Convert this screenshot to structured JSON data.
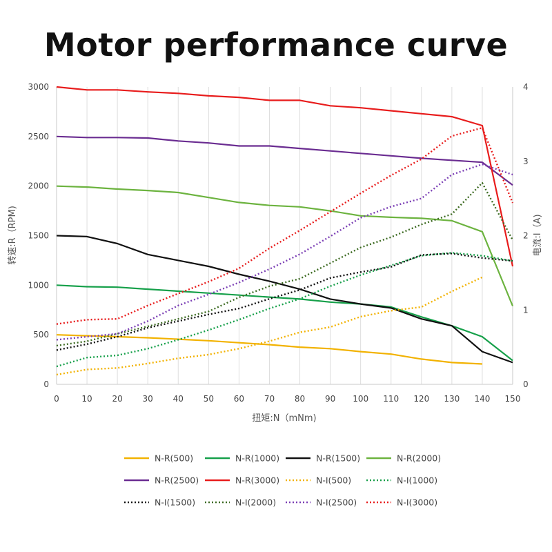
{
  "chart_data": {
    "type": "line",
    "title": "Motor performance curve",
    "xlabel": "扭矩:N（mNm)",
    "ylabel": "转速:R（RPM)",
    "y2label": "电流:I（A)",
    "xlim": [
      0,
      150
    ],
    "ylim": [
      0,
      3000
    ],
    "y2lim": [
      0,
      4
    ],
    "x_ticks": [
      0,
      10,
      20,
      30,
      40,
      50,
      60,
      70,
      80,
      90,
      100,
      110,
      120,
      130,
      140,
      150
    ],
    "y_ticks": [
      0,
      500,
      1000,
      1500,
      2000,
      2500,
      3000
    ],
    "y2_ticks": [
      0,
      1,
      2,
      3,
      4
    ],
    "grid": "vertical",
    "legend_position": "bottom",
    "series": [
      {
        "name": "N-R(500)",
        "axis": "left",
        "style": "solid",
        "color": "#F2B200",
        "x": [
          0,
          10,
          20,
          30,
          40,
          50,
          60,
          70,
          80,
          90,
          100,
          110,
          120,
          130,
          140
        ],
        "values": [
          500,
          490,
          480,
          470,
          455,
          440,
          420,
          400,
          375,
          360,
          330,
          305,
          255,
          220,
          205
        ]
      },
      {
        "name": "N-R(1000)",
        "axis": "left",
        "style": "solid",
        "color": "#16A04A",
        "x": [
          0,
          10,
          20,
          30,
          40,
          50,
          60,
          70,
          80,
          90,
          100,
          110,
          120,
          130,
          140,
          150
        ],
        "values": [
          1000,
          985,
          980,
          960,
          940,
          920,
          900,
          880,
          860,
          830,
          810,
          780,
          680,
          590,
          480,
          240
        ]
      },
      {
        "name": "N-R(1500)",
        "axis": "left",
        "style": "solid",
        "color": "#111111",
        "x": [
          0,
          10,
          20,
          30,
          40,
          50,
          60,
          70,
          80,
          90,
          100,
          110,
          120,
          130,
          140,
          150
        ],
        "values": [
          1500,
          1490,
          1420,
          1310,
          1250,
          1190,
          1110,
          1040,
          960,
          860,
          810,
          770,
          660,
          590,
          330,
          220
        ]
      },
      {
        "name": "N-R(2000)",
        "axis": "left",
        "style": "solid",
        "color": "#6CB33F",
        "x": [
          0,
          10,
          20,
          30,
          40,
          50,
          60,
          70,
          80,
          90,
          100,
          110,
          120,
          130,
          140,
          150
        ],
        "values": [
          2000,
          1990,
          1970,
          1955,
          1935,
          1885,
          1835,
          1805,
          1790,
          1750,
          1700,
          1685,
          1675,
          1650,
          1540,
          790
        ]
      },
      {
        "name": "N-R(2500)",
        "axis": "left",
        "style": "solid",
        "color": "#6A2C91",
        "x": [
          0,
          10,
          20,
          30,
          40,
          50,
          60,
          70,
          80,
          90,
          100,
          110,
          120,
          130,
          140,
          150
        ],
        "values": [
          2500,
          2490,
          2490,
          2485,
          2455,
          2435,
          2405,
          2405,
          2380,
          2355,
          2330,
          2305,
          2280,
          2260,
          2240,
          2010
        ]
      },
      {
        "name": "N-R(3000)",
        "axis": "left",
        "style": "solid",
        "color": "#E81C1C",
        "x": [
          0,
          10,
          20,
          30,
          40,
          50,
          60,
          70,
          80,
          90,
          100,
          110,
          120,
          130,
          140,
          150
        ],
        "values": [
          3000,
          2970,
          2970,
          2950,
          2935,
          2910,
          2895,
          2865,
          2865,
          2810,
          2790,
          2760,
          2730,
          2700,
          2610,
          1190
        ]
      },
      {
        "name": "N-I(500)",
        "axis": "right",
        "style": "dotted",
        "color": "#F2B200",
        "x": [
          0,
          10,
          20,
          30,
          40,
          50,
          60,
          70,
          80,
          90,
          100,
          110,
          120,
          130,
          140
        ],
        "values": [
          0.13,
          0.2,
          0.22,
          0.28,
          0.35,
          0.4,
          0.48,
          0.58,
          0.7,
          0.77,
          0.91,
          0.99,
          1.04,
          1.25,
          1.44
        ]
      },
      {
        "name": "N-I(1000)",
        "axis": "right",
        "style": "dotted",
        "color": "#16A04A",
        "x": [
          0,
          10,
          20,
          30,
          40,
          50,
          60,
          70,
          80,
          90,
          100,
          110,
          120,
          130,
          140,
          150
        ],
        "values": [
          0.24,
          0.36,
          0.39,
          0.48,
          0.6,
          0.73,
          0.87,
          1.02,
          1.15,
          1.32,
          1.47,
          1.6,
          1.73,
          1.77,
          1.73,
          1.66
        ]
      },
      {
        "name": "N-I(1500)",
        "axis": "right",
        "style": "dotted",
        "color": "#111111",
        "x": [
          0,
          10,
          20,
          30,
          40,
          50,
          60,
          70,
          80,
          90,
          100,
          110,
          120,
          130,
          140,
          150
        ],
        "values": [
          0.46,
          0.54,
          0.64,
          0.76,
          0.85,
          0.94,
          1.02,
          1.15,
          1.27,
          1.43,
          1.51,
          1.58,
          1.74,
          1.76,
          1.7,
          1.66
        ]
      },
      {
        "name": "N-I(2000)",
        "axis": "right",
        "style": "dotted",
        "color": "#3D6B22",
        "x": [
          0,
          10,
          20,
          30,
          40,
          50,
          60,
          70,
          80,
          90,
          100,
          110,
          120,
          130,
          140,
          150
        ],
        "values": [
          0.52,
          0.58,
          0.68,
          0.78,
          0.88,
          0.98,
          1.17,
          1.32,
          1.42,
          1.63,
          1.84,
          1.98,
          2.15,
          2.29,
          2.71,
          1.94
        ]
      },
      {
        "name": "N-I(2500)",
        "axis": "right",
        "style": "dotted",
        "color": "#7B3FB5",
        "x": [
          0,
          10,
          20,
          30,
          40,
          50,
          60,
          70,
          80,
          90,
          100,
          110,
          120,
          130,
          140,
          150
        ],
        "values": [
          0.6,
          0.64,
          0.68,
          0.85,
          1.06,
          1.21,
          1.37,
          1.55,
          1.75,
          1.99,
          2.24,
          2.39,
          2.5,
          2.82,
          2.96,
          2.82
        ]
      },
      {
        "name": "N-I(3000)",
        "axis": "right",
        "style": "dotted",
        "color": "#E81C1C",
        "x": [
          0,
          10,
          20,
          30,
          40,
          50,
          60,
          70,
          80,
          90,
          100,
          110,
          120,
          130,
          140,
          150
        ],
        "values": [
          0.81,
          0.87,
          0.88,
          1.06,
          1.22,
          1.38,
          1.56,
          1.83,
          2.07,
          2.32,
          2.57,
          2.81,
          3.03,
          3.34,
          3.45,
          2.44
        ]
      }
    ]
  }
}
